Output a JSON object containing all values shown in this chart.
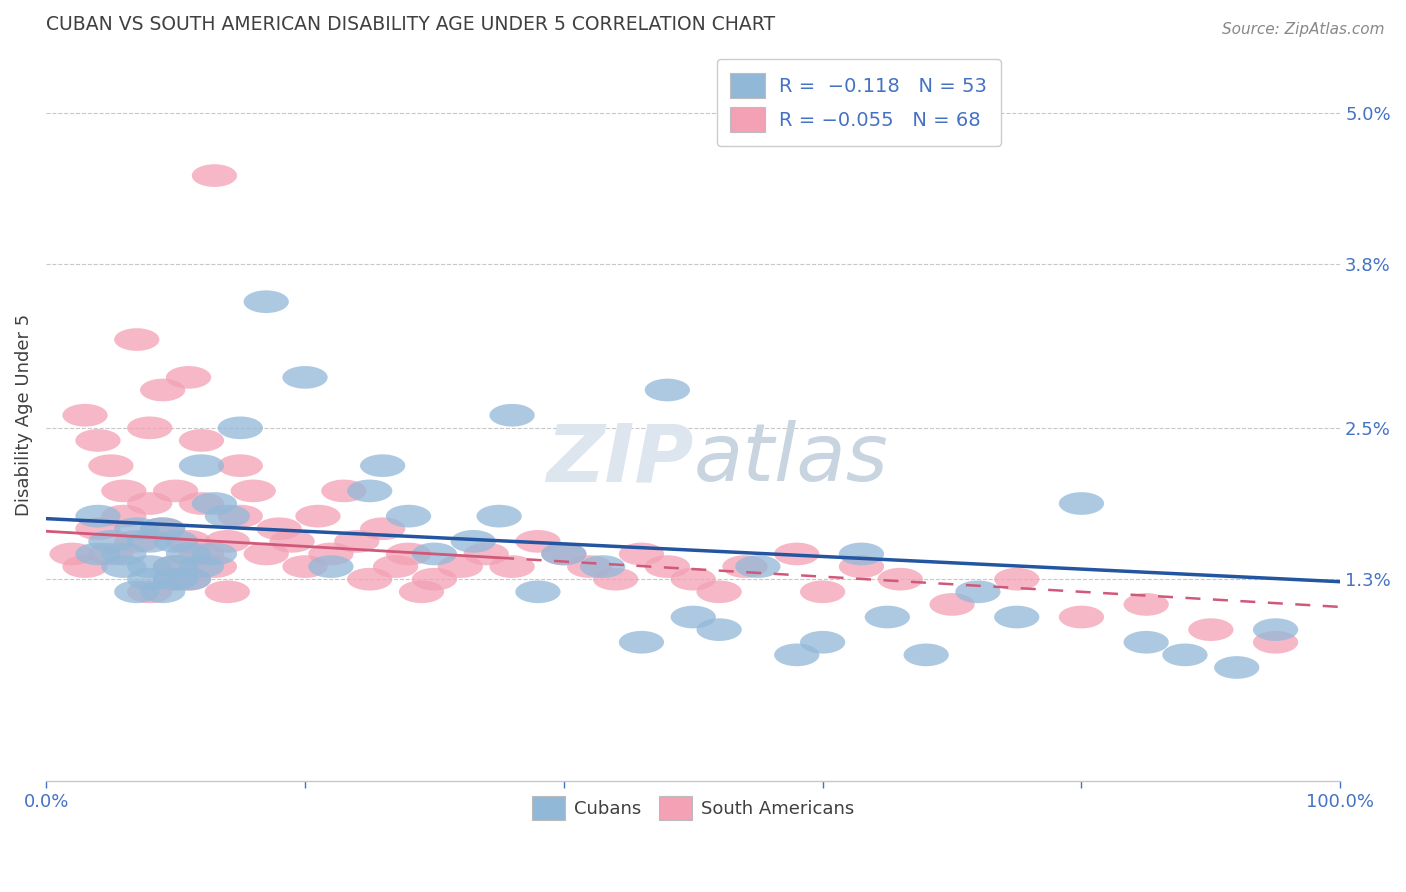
{
  "title": "CUBAN VS SOUTH AMERICAN DISABILITY AGE UNDER 5 CORRELATION CHART",
  "source_text": "Source: ZipAtlas.com",
  "ylabel": "Disability Age Under 5",
  "xlim": [
    0,
    100
  ],
  "ylim": [
    -0.3,
    5.5
  ],
  "yticks": [
    1.3,
    2.5,
    3.8,
    5.0
  ],
  "ytick_labels": [
    "1.3%",
    "2.5%",
    "3.8%",
    "5.0%"
  ],
  "xticks": [
    0,
    20,
    40,
    60,
    80,
    100
  ],
  "xtick_labels": [
    "0.0%",
    "",
    "",
    "",
    "",
    "100.0%"
  ],
  "cubans_R": -0.118,
  "cubans_N": 53,
  "southamericans_R": -0.055,
  "southamericans_N": 68,
  "blue_color": "#92b8d8",
  "pink_color": "#f4a0b5",
  "blue_line_color": "#2355a0",
  "pink_line_color": "#d05878",
  "legend_text_color": "#4472c4",
  "title_color": "#404040",
  "axis_color": "#4472c4",
  "watermark_color": "#dde5ee",
  "cubans_x": [
    4,
    4,
    5,
    6,
    6,
    7,
    7,
    8,
    8,
    8,
    9,
    9,
    10,
    10,
    10,
    11,
    11,
    12,
    12,
    13,
    13,
    14,
    15,
    17,
    20,
    22,
    25,
    26,
    28,
    30,
    33,
    35,
    36,
    38,
    40,
    43,
    46,
    48,
    50,
    52,
    55,
    58,
    60,
    63,
    65,
    68,
    72,
    75,
    80,
    85,
    88,
    92,
    95
  ],
  "cubans_y": [
    1.8,
    1.5,
    1.6,
    1.4,
    1.5,
    1.7,
    1.2,
    1.6,
    1.4,
    1.3,
    1.7,
    1.2,
    1.6,
    1.4,
    1.3,
    1.5,
    1.3,
    1.4,
    2.2,
    1.9,
    1.5,
    1.8,
    2.5,
    3.5,
    2.9,
    1.4,
    2.0,
    2.2,
    1.8,
    1.5,
    1.6,
    1.8,
    2.6,
    1.2,
    1.5,
    1.4,
    0.8,
    2.8,
    1.0,
    0.9,
    1.4,
    0.7,
    0.8,
    1.5,
    1.0,
    0.7,
    1.2,
    1.0,
    1.9,
    0.8,
    0.7,
    0.6,
    0.9
  ],
  "southamericans_x": [
    2,
    3,
    3,
    4,
    4,
    5,
    5,
    6,
    6,
    7,
    7,
    8,
    8,
    8,
    9,
    9,
    10,
    10,
    10,
    11,
    11,
    11,
    12,
    12,
    12,
    13,
    13,
    14,
    14,
    15,
    15,
    16,
    17,
    18,
    19,
    20,
    21,
    22,
    23,
    24,
    25,
    26,
    27,
    28,
    29,
    30,
    32,
    34,
    36,
    38,
    40,
    42,
    44,
    46,
    48,
    50,
    52,
    54,
    58,
    60,
    63,
    66,
    70,
    75,
    80,
    85,
    90,
    95
  ],
  "southamericans_y": [
    1.5,
    2.6,
    1.4,
    2.4,
    1.7,
    1.5,
    2.2,
    1.8,
    2.0,
    1.6,
    3.2,
    2.5,
    1.9,
    1.2,
    2.8,
    1.7,
    1.4,
    2.0,
    1.3,
    1.3,
    1.6,
    2.9,
    2.4,
    1.5,
    1.9,
    4.5,
    1.4,
    1.6,
    1.2,
    2.2,
    1.8,
    2.0,
    1.5,
    1.7,
    1.6,
    1.4,
    1.8,
    1.5,
    2.0,
    1.6,
    1.3,
    1.7,
    1.4,
    1.5,
    1.2,
    1.3,
    1.4,
    1.5,
    1.4,
    1.6,
    1.5,
    1.4,
    1.3,
    1.5,
    1.4,
    1.3,
    1.2,
    1.4,
    1.5,
    1.2,
    1.4,
    1.3,
    1.1,
    1.3,
    1.0,
    1.1,
    0.9,
    0.8
  ],
  "blue_line_x0": 0,
  "blue_line_y0": 1.78,
  "blue_line_x1": 100,
  "blue_line_y1": 1.28,
  "pink_line_x0": 0,
  "pink_line_y0": 1.68,
  "pink_line_x1": 100,
  "pink_line_y1": 1.08
}
